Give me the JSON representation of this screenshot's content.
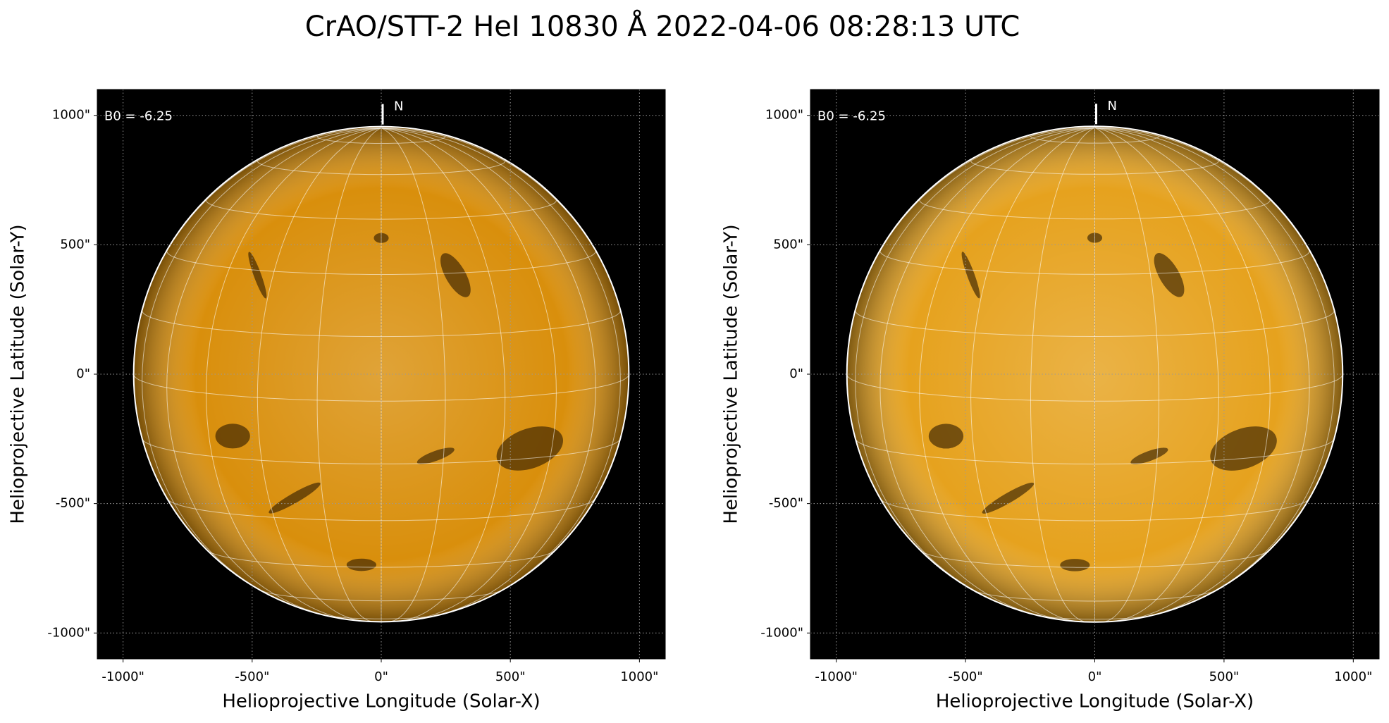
{
  "title": "CrAO/STT-2 HeI 10830 Å 2022-04-06 08:28:13 UTC",
  "chart_data": [
    {
      "type": "solar-map",
      "xlabel": "Helioprojective Longitude (Solar-X)",
      "ylabel": "Helioprojective Latitude (Solar-Y)",
      "xlim": [
        -1100,
        1100
      ],
      "ylim": [
        -1100,
        1100
      ],
      "xticks": [
        {
          "value": -1000,
          "label": "-1000\""
        },
        {
          "value": -500,
          "label": "-500\""
        },
        {
          "value": 0,
          "label": "0\""
        },
        {
          "value": 500,
          "label": "500\""
        },
        {
          "value": 1000,
          "label": "1000\""
        }
      ],
      "yticks": [
        {
          "value": -1000,
          "label": "-1000\""
        },
        {
          "value": -500,
          "label": "-500\""
        },
        {
          "value": 0,
          "label": "0\""
        },
        {
          "value": 500,
          "label": "500\""
        },
        {
          "value": 1000,
          "label": "1000\""
        }
      ],
      "grid": true,
      "solar_radius": 959,
      "disk_color": "#d98f0c",
      "b0_label": "B0 = -6.25",
      "north_label": "N"
    },
    {
      "type": "solar-map",
      "xlabel": "Helioprojective Longitude (Solar-X)",
      "ylabel": "Helioprojective Latitude (Solar-Y)",
      "xlim": [
        -1100,
        1100
      ],
      "ylim": [
        -1100,
        1100
      ],
      "xticks": [
        {
          "value": -1000,
          "label": "-1000\""
        },
        {
          "value": -500,
          "label": "-500\""
        },
        {
          "value": 0,
          "label": "0\""
        },
        {
          "value": 500,
          "label": "500\""
        },
        {
          "value": 1000,
          "label": "1000\""
        }
      ],
      "yticks": [
        {
          "value": -1000,
          "label": "-1000\""
        },
        {
          "value": -500,
          "label": "-500\""
        },
        {
          "value": 0,
          "label": "0\""
        },
        {
          "value": 500,
          "label": "500\""
        },
        {
          "value": 1000,
          "label": "1000\""
        }
      ],
      "grid": true,
      "solar_radius": 959,
      "disk_color": "#e6a21e",
      "b0_label": "B0 = -6.25",
      "north_label": "N"
    }
  ]
}
